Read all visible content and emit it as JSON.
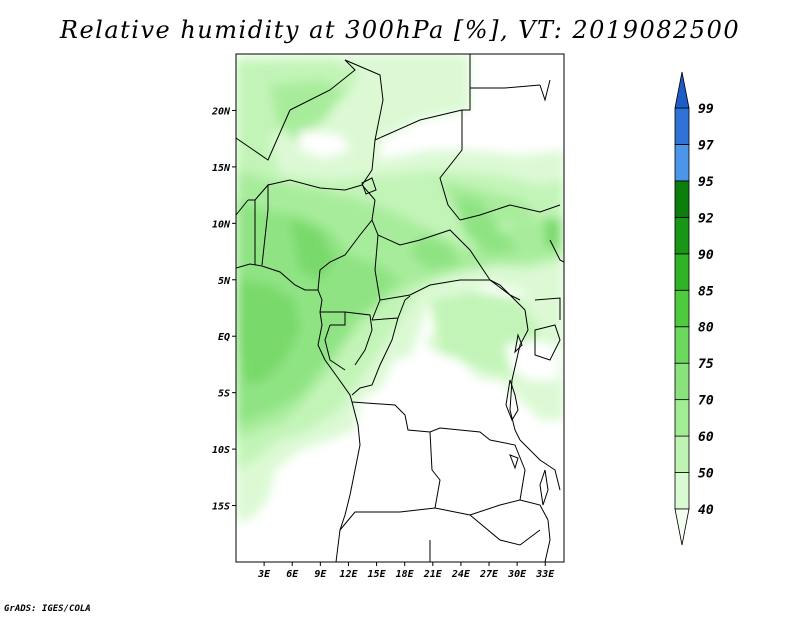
{
  "title": "Relative humidity at 300hPa [%], VT: 2019082500",
  "credit": "GrADS: IGES/COLA",
  "map": {
    "lon_range": [
      0,
      35
    ],
    "lat_range": [
      -20,
      25
    ],
    "x_ticks": [
      "3E",
      "6E",
      "9E",
      "12E",
      "15E",
      "18E",
      "21E",
      "24E",
      "27E",
      "30E",
      "33E"
    ],
    "y_ticks": [
      "20N",
      "15N",
      "10N",
      "5N",
      "EQ",
      "5S",
      "10S",
      "15S"
    ]
  },
  "colorbar": {
    "levels": [
      "40",
      "50",
      "60",
      "70",
      "75",
      "80",
      "85",
      "90",
      "92",
      "95",
      "97",
      "99"
    ],
    "colors": [
      "#f2fef0",
      "#d9f9d2",
      "#bff3b4",
      "#a3ec96",
      "#8ae27c",
      "#6dd85e",
      "#4dcb3d",
      "#2fb225",
      "#179715",
      "#0a7d0a",
      "#4b96e8",
      "#2f73d9",
      "#1e5cc8"
    ]
  }
}
